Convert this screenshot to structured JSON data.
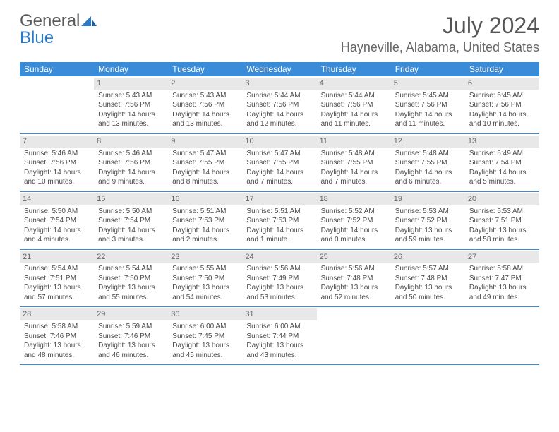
{
  "brand": {
    "part1": "General",
    "part2": "Blue"
  },
  "title": "July 2024",
  "location": "Hayneville, Alabama, United States",
  "colors": {
    "header_bg": "#3a8bd8",
    "header_text": "#ffffff",
    "daynum_bg": "#e8e8e8",
    "rule": "#3a8bd8",
    "brand_gray": "#5a5a5a",
    "brand_blue": "#2b7ac7"
  },
  "weekdays": [
    "Sunday",
    "Monday",
    "Tuesday",
    "Wednesday",
    "Thursday",
    "Friday",
    "Saturday"
  ],
  "weeks": [
    [
      {
        "n": "",
        "sr": "",
        "ss": "",
        "d1": "",
        "d2": ""
      },
      {
        "n": "1",
        "sr": "Sunrise: 5:43 AM",
        "ss": "Sunset: 7:56 PM",
        "d1": "Daylight: 14 hours",
        "d2": "and 13 minutes."
      },
      {
        "n": "2",
        "sr": "Sunrise: 5:43 AM",
        "ss": "Sunset: 7:56 PM",
        "d1": "Daylight: 14 hours",
        "d2": "and 13 minutes."
      },
      {
        "n": "3",
        "sr": "Sunrise: 5:44 AM",
        "ss": "Sunset: 7:56 PM",
        "d1": "Daylight: 14 hours",
        "d2": "and 12 minutes."
      },
      {
        "n": "4",
        "sr": "Sunrise: 5:44 AM",
        "ss": "Sunset: 7:56 PM",
        "d1": "Daylight: 14 hours",
        "d2": "and 11 minutes."
      },
      {
        "n": "5",
        "sr": "Sunrise: 5:45 AM",
        "ss": "Sunset: 7:56 PM",
        "d1": "Daylight: 14 hours",
        "d2": "and 11 minutes."
      },
      {
        "n": "6",
        "sr": "Sunrise: 5:45 AM",
        "ss": "Sunset: 7:56 PM",
        "d1": "Daylight: 14 hours",
        "d2": "and 10 minutes."
      }
    ],
    [
      {
        "n": "7",
        "sr": "Sunrise: 5:46 AM",
        "ss": "Sunset: 7:56 PM",
        "d1": "Daylight: 14 hours",
        "d2": "and 10 minutes."
      },
      {
        "n": "8",
        "sr": "Sunrise: 5:46 AM",
        "ss": "Sunset: 7:56 PM",
        "d1": "Daylight: 14 hours",
        "d2": "and 9 minutes."
      },
      {
        "n": "9",
        "sr": "Sunrise: 5:47 AM",
        "ss": "Sunset: 7:55 PM",
        "d1": "Daylight: 14 hours",
        "d2": "and 8 minutes."
      },
      {
        "n": "10",
        "sr": "Sunrise: 5:47 AM",
        "ss": "Sunset: 7:55 PM",
        "d1": "Daylight: 14 hours",
        "d2": "and 7 minutes."
      },
      {
        "n": "11",
        "sr": "Sunrise: 5:48 AM",
        "ss": "Sunset: 7:55 PM",
        "d1": "Daylight: 14 hours",
        "d2": "and 7 minutes."
      },
      {
        "n": "12",
        "sr": "Sunrise: 5:48 AM",
        "ss": "Sunset: 7:55 PM",
        "d1": "Daylight: 14 hours",
        "d2": "and 6 minutes."
      },
      {
        "n": "13",
        "sr": "Sunrise: 5:49 AM",
        "ss": "Sunset: 7:54 PM",
        "d1": "Daylight: 14 hours",
        "d2": "and 5 minutes."
      }
    ],
    [
      {
        "n": "14",
        "sr": "Sunrise: 5:50 AM",
        "ss": "Sunset: 7:54 PM",
        "d1": "Daylight: 14 hours",
        "d2": "and 4 minutes."
      },
      {
        "n": "15",
        "sr": "Sunrise: 5:50 AM",
        "ss": "Sunset: 7:54 PM",
        "d1": "Daylight: 14 hours",
        "d2": "and 3 minutes."
      },
      {
        "n": "16",
        "sr": "Sunrise: 5:51 AM",
        "ss": "Sunset: 7:53 PM",
        "d1": "Daylight: 14 hours",
        "d2": "and 2 minutes."
      },
      {
        "n": "17",
        "sr": "Sunrise: 5:51 AM",
        "ss": "Sunset: 7:53 PM",
        "d1": "Daylight: 14 hours",
        "d2": "and 1 minute."
      },
      {
        "n": "18",
        "sr": "Sunrise: 5:52 AM",
        "ss": "Sunset: 7:52 PM",
        "d1": "Daylight: 14 hours",
        "d2": "and 0 minutes."
      },
      {
        "n": "19",
        "sr": "Sunrise: 5:53 AM",
        "ss": "Sunset: 7:52 PM",
        "d1": "Daylight: 13 hours",
        "d2": "and 59 minutes."
      },
      {
        "n": "20",
        "sr": "Sunrise: 5:53 AM",
        "ss": "Sunset: 7:51 PM",
        "d1": "Daylight: 13 hours",
        "d2": "and 58 minutes."
      }
    ],
    [
      {
        "n": "21",
        "sr": "Sunrise: 5:54 AM",
        "ss": "Sunset: 7:51 PM",
        "d1": "Daylight: 13 hours",
        "d2": "and 57 minutes."
      },
      {
        "n": "22",
        "sr": "Sunrise: 5:54 AM",
        "ss": "Sunset: 7:50 PM",
        "d1": "Daylight: 13 hours",
        "d2": "and 55 minutes."
      },
      {
        "n": "23",
        "sr": "Sunrise: 5:55 AM",
        "ss": "Sunset: 7:50 PM",
        "d1": "Daylight: 13 hours",
        "d2": "and 54 minutes."
      },
      {
        "n": "24",
        "sr": "Sunrise: 5:56 AM",
        "ss": "Sunset: 7:49 PM",
        "d1": "Daylight: 13 hours",
        "d2": "and 53 minutes."
      },
      {
        "n": "25",
        "sr": "Sunrise: 5:56 AM",
        "ss": "Sunset: 7:48 PM",
        "d1": "Daylight: 13 hours",
        "d2": "and 52 minutes."
      },
      {
        "n": "26",
        "sr": "Sunrise: 5:57 AM",
        "ss": "Sunset: 7:48 PM",
        "d1": "Daylight: 13 hours",
        "d2": "and 50 minutes."
      },
      {
        "n": "27",
        "sr": "Sunrise: 5:58 AM",
        "ss": "Sunset: 7:47 PM",
        "d1": "Daylight: 13 hours",
        "d2": "and 49 minutes."
      }
    ],
    [
      {
        "n": "28",
        "sr": "Sunrise: 5:58 AM",
        "ss": "Sunset: 7:46 PM",
        "d1": "Daylight: 13 hours",
        "d2": "and 48 minutes."
      },
      {
        "n": "29",
        "sr": "Sunrise: 5:59 AM",
        "ss": "Sunset: 7:46 PM",
        "d1": "Daylight: 13 hours",
        "d2": "and 46 minutes."
      },
      {
        "n": "30",
        "sr": "Sunrise: 6:00 AM",
        "ss": "Sunset: 7:45 PM",
        "d1": "Daylight: 13 hours",
        "d2": "and 45 minutes."
      },
      {
        "n": "31",
        "sr": "Sunrise: 6:00 AM",
        "ss": "Sunset: 7:44 PM",
        "d1": "Daylight: 13 hours",
        "d2": "and 43 minutes."
      },
      {
        "n": "",
        "sr": "",
        "ss": "",
        "d1": "",
        "d2": ""
      },
      {
        "n": "",
        "sr": "",
        "ss": "",
        "d1": "",
        "d2": ""
      },
      {
        "n": "",
        "sr": "",
        "ss": "",
        "d1": "",
        "d2": ""
      }
    ]
  ]
}
